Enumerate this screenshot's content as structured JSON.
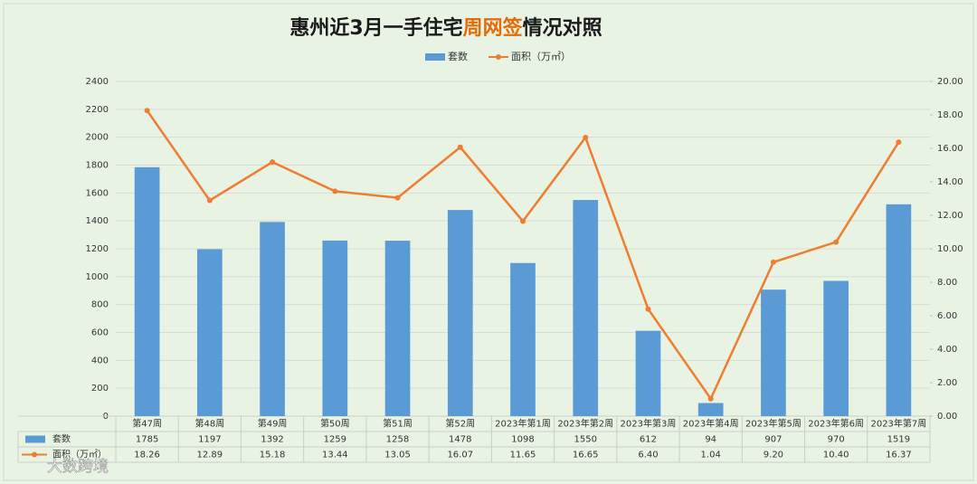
{
  "chart_data": {
    "type": "bar",
    "title_parts": [
      "惠州近3月一手住宅",
      "周网签",
      "情况对照"
    ],
    "title_colors": [
      "#1a1a1a",
      "#e36c0a",
      "#1a1a1a"
    ],
    "categories": [
      "第47周",
      "第48周",
      "第49周",
      "第50周",
      "第51周",
      "第52周",
      "2023年第1周",
      "2023年第2周",
      "2023年第3周",
      "2023年第4周",
      "2023年第5周",
      "2023年第6周",
      "2023年第7周"
    ],
    "series": [
      {
        "name": "套数",
        "type": "bar",
        "color": "#5b9bd5",
        "values": [
          1785,
          1197,
          1392,
          1259,
          1258,
          1478,
          1098,
          1550,
          612,
          94,
          907,
          970,
          1519
        ]
      },
      {
        "name": "面积（万㎡）",
        "type": "line",
        "axis": "y2",
        "color": "#ed7d31",
        "values": [
          18.26,
          12.89,
          15.18,
          13.44,
          13.05,
          16.07,
          11.65,
          16.65,
          6.4,
          1.04,
          9.2,
          10.4,
          16.37
        ],
        "value_labels": [
          "18.26",
          "12.89",
          "15.18",
          "13.44",
          "13.05",
          "16.07",
          "11.65",
          "16.65",
          "6.40",
          "1.04",
          "9.20",
          "10.40",
          "16.37"
        ]
      }
    ],
    "ylim": [
      0,
      2400
    ],
    "yticks": [
      0,
      200,
      400,
      600,
      800,
      1000,
      1200,
      1400,
      1600,
      1800,
      2000,
      2200,
      2400
    ],
    "y2lim": [
      0,
      20
    ],
    "y2ticks": [
      {
        "value": 0,
        "label": "0.00"
      },
      {
        "value": 2,
        "label": "2.00"
      },
      {
        "value": 4,
        "label": "4.00"
      },
      {
        "value": 6,
        "label": "6.00"
      },
      {
        "value": 8,
        "label": "8.00"
      },
      {
        "value": 10,
        "label": "10.00"
      },
      {
        "value": 12,
        "label": "12.00"
      },
      {
        "value": 14,
        "label": "14.00"
      },
      {
        "value": 16,
        "label": "16.00"
      },
      {
        "value": 18,
        "label": "18.00"
      },
      {
        "value": 20,
        "label": "20.00"
      }
    ],
    "grid": true,
    "legend": "top",
    "watermark": "大数跨境"
  }
}
